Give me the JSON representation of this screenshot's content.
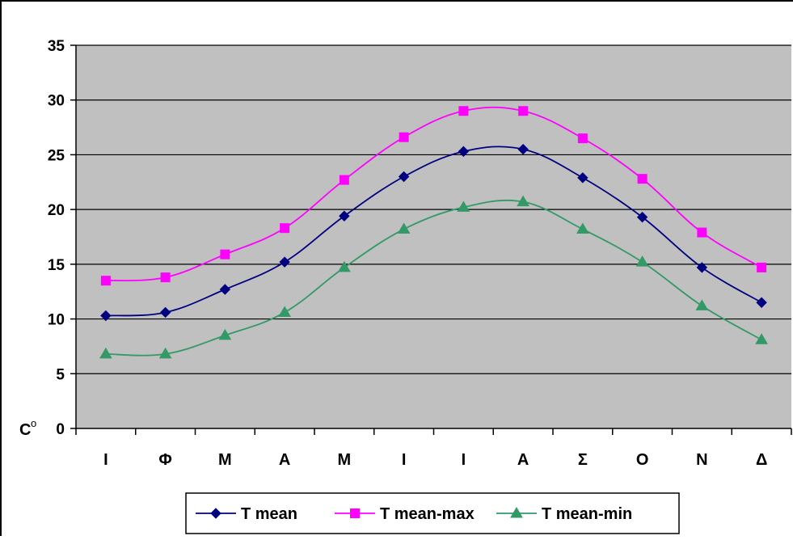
{
  "chart_data": {
    "type": "line",
    "title": "",
    "xlabel": "",
    "ylabel": "C",
    "ylabel_superscript": "o",
    "categories": [
      "Ι",
      "Φ",
      "Μ",
      "Α",
      "Μ",
      "Ι",
      "Ι",
      "Α",
      "Σ",
      "Ο",
      "Ν",
      "Δ"
    ],
    "ylim": [
      0,
      35
    ],
    "yticks": [
      0,
      5,
      10,
      15,
      20,
      25,
      30,
      35
    ],
    "grid": true,
    "legend_position": "bottom",
    "plot_background": "#c0c0c0",
    "series": [
      {
        "name": "T mean",
        "color": "#000080",
        "marker": "diamond",
        "values": [
          10.3,
          10.6,
          12.7,
          15.2,
          19.4,
          23.0,
          25.3,
          25.5,
          22.9,
          19.3,
          14.7,
          11.5
        ]
      },
      {
        "name": "T mean-max",
        "color": "#ff00ff",
        "marker": "square",
        "values": [
          13.5,
          13.8,
          15.9,
          18.3,
          22.7,
          26.6,
          29.0,
          29.0,
          26.5,
          22.8,
          17.9,
          14.7
        ]
      },
      {
        "name": "T mean-min",
        "color": "#339966",
        "marker": "triangle",
        "values": [
          6.8,
          6.8,
          8.5,
          10.6,
          14.7,
          18.2,
          20.2,
          20.7,
          18.2,
          15.2,
          11.2,
          8.1
        ]
      }
    ]
  }
}
